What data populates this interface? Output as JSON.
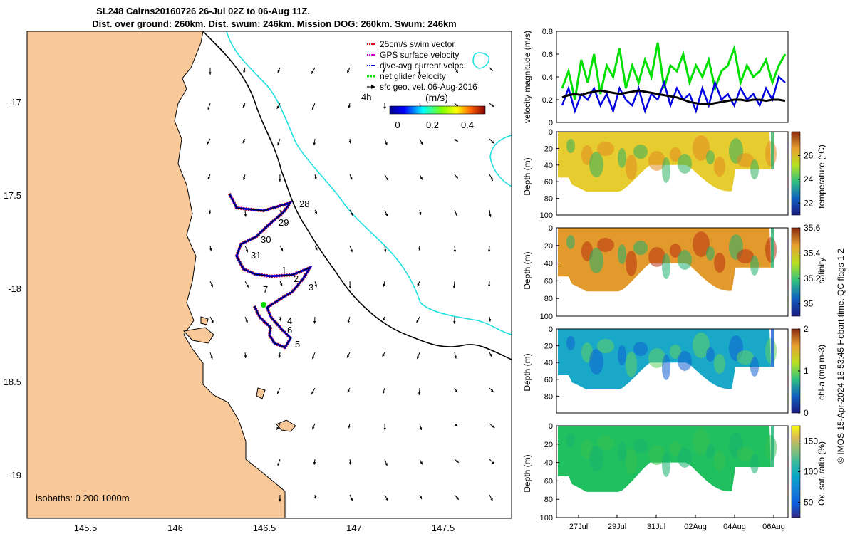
{
  "title_line1": "SL248 Cairns20160726 26-Jul 02Z to 06-Aug 11Z.",
  "title_line2": "Dist. over ground: 260km. Dist. swum: 246km. Mission DOG: 260km. Swum: 246km",
  "map": {
    "lon_ticks": [
      "145.5",
      "146",
      "146.5",
      "147",
      "147.5"
    ],
    "lat_ticks": [
      "-17",
      "17.5",
      "-18",
      "18.5",
      "-19"
    ],
    "isobaths_label": "isobaths: 0   200  1000m",
    "legend": [
      {
        "label": "25cm/s swim vector",
        "color": "#e00000"
      },
      {
        "label": "GPS surface velocity",
        "color": "#d000d0"
      },
      {
        "label": "dive-avg current veloc.",
        "color": "#0000e0"
      },
      {
        "label": "net glider velocity",
        "color": "#00dd00"
      },
      {
        "label": "sfc geo. vel. 06-Aug-2016",
        "color": "#000000"
      }
    ],
    "time_marker": "4h",
    "colorbar_unit": "(m/s)",
    "colorbar_ticks": [
      "0",
      "0.2",
      "0.4"
    ],
    "day_labels": [
      "28",
      "29",
      "30",
      "31",
      "1",
      "2",
      "3",
      "4",
      "5",
      "6",
      "7"
    ],
    "land_color": "#f9c99a",
    "isobath_200_color": "#000000",
    "isobath_1000_color": "#20e0e0"
  },
  "chart_data": [
    {
      "type": "line",
      "ylabel": "velocity magnitude (m/s)",
      "ylim": [
        0,
        0.8
      ],
      "yticks": [
        "0",
        "0.2",
        "0.4",
        "0.6",
        "0.8"
      ],
      "series": [
        {
          "color": "#00e000",
          "values": [
            0.3,
            0.45,
            0.2,
            0.55,
            0.35,
            0.6,
            0.25,
            0.5,
            0.4,
            0.65,
            0.3,
            0.5,
            0.35,
            0.55,
            0.4,
            0.7,
            0.3,
            0.5,
            0.45,
            0.6,
            0.35,
            0.5,
            0.4,
            0.55,
            0.3,
            0.45,
            0.5,
            0.65,
            0.35,
            0.5,
            0.4,
            0.45,
            0.55,
            0.35,
            0.5,
            0.6
          ]
        },
        {
          "color": "#0000e0",
          "values": [
            0.15,
            0.3,
            0.1,
            0.25,
            0.2,
            0.3,
            0.15,
            0.25,
            0.1,
            0.3,
            0.2,
            0.15,
            0.3,
            0.1,
            0.25,
            0.2,
            0.35,
            0.15,
            0.3,
            0.2,
            0.25,
            0.1,
            0.3,
            0.15,
            0.35,
            0.2,
            0.25,
            0.15,
            0.3,
            0.2,
            0.25,
            0.15,
            0.3,
            0.2,
            0.4,
            0.35
          ]
        },
        {
          "color": "#000000",
          "values": [
            0.22,
            0.24,
            0.25,
            0.24,
            0.26,
            0.27,
            0.28,
            0.27,
            0.26,
            0.25,
            0.26,
            0.27,
            0.28,
            0.27,
            0.26,
            0.25,
            0.24,
            0.23,
            0.22,
            0.2,
            0.18,
            0.17,
            0.16,
            0.16,
            0.17,
            0.18,
            0.19,
            0.2,
            0.2,
            0.19,
            0.2,
            0.2,
            0.19,
            0.2,
            0.2,
            0.19
          ]
        }
      ]
    },
    {
      "type": "heatmap",
      "ylabel": "Depth (m)",
      "clabel": "temperature (°C)",
      "cticks": [
        "22",
        "24",
        "26"
      ],
      "crange": [
        21,
        28
      ],
      "depth_ticks": [
        "0",
        "20",
        "40",
        "60",
        "80",
        "100"
      ]
    },
    {
      "type": "heatmap",
      "ylabel": "Depth (m)",
      "clabel": "salinity",
      "cticks": [
        "35",
        "35.2",
        "35.4",
        "35.6"
      ],
      "crange": [
        34.9,
        35.6
      ],
      "depth_ticks": [
        "0",
        "20",
        "40",
        "60",
        "80",
        "100"
      ]
    },
    {
      "type": "heatmap",
      "ylabel": "Depth (m)",
      "clabel": "chl-a (mg m-3)",
      "cticks": [
        "0",
        "1",
        "2"
      ],
      "crange": [
        0,
        2
      ],
      "depth_ticks": [
        "0",
        "20",
        "40",
        "60",
        "80"
      ]
    },
    {
      "type": "heatmap",
      "ylabel": "Depth (m)",
      "clabel": "Ox. sat. ratio (%)",
      "cticks": [
        "50",
        "100",
        "150"
      ],
      "crange": [
        25,
        175
      ],
      "depth_ticks": [
        "0",
        "20",
        "40",
        "60",
        "80",
        "100"
      ]
    }
  ],
  "time_axis": [
    "27Jul",
    "29Jul",
    "31Jul",
    "02Aug",
    "04Aug",
    "06Aug"
  ],
  "credit": "© IMOS 15-Apr-2024 18:53:45 Hobart time. QC flags 1  2"
}
